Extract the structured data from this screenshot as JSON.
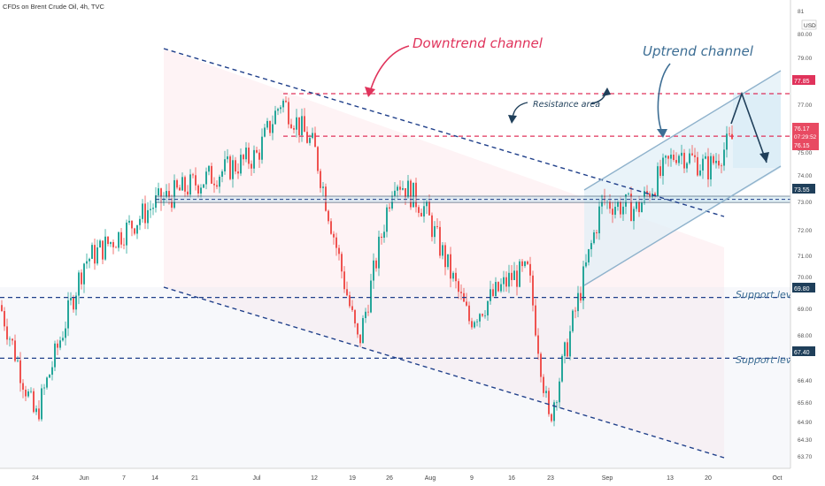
{
  "header": {
    "symbol_line": "CFDs on Brent Crude Oil, 4h, TVC"
  },
  "y_axis": {
    "currency": "USD",
    "ticks": [
      "81",
      "80.00",
      "79.00",
      "77.85",
      "77.00",
      "76.17",
      "75.00",
      "74.00",
      "73.55",
      "73.00",
      "72.00",
      "71.00",
      "70.00",
      "69.80",
      "69.00",
      "68.00",
      "67.40",
      "66.40",
      "65.60",
      "64.90",
      "64.30",
      "63.70"
    ],
    "price_labels": [
      {
        "value": "77.85",
        "type": "resistance"
      },
      {
        "value": "76.17",
        "type": "last"
      },
      {
        "value": "07:29:52",
        "type": "countdown"
      },
      {
        "value": "76.15",
        "type": "last2"
      },
      {
        "value": "73.55",
        "type": "level"
      },
      {
        "value": "69.80",
        "type": "support"
      },
      {
        "value": "67.40",
        "type": "support"
      }
    ]
  },
  "x_axis": {
    "ticks": [
      "24",
      "Jun",
      "7",
      "14",
      "21",
      "Jul",
      "12",
      "19",
      "26",
      "Aug",
      "9",
      "16",
      "23",
      "Sep",
      "13",
      "20",
      "Oct"
    ]
  },
  "annotations": {
    "downtrend": "Downtrend channel",
    "uptrend": "Uptrend channel",
    "resistance": "Resistance area",
    "support1": "Support level",
    "support2": "Support level"
  },
  "colors": {
    "up": "#26a69a",
    "down": "#ef5350",
    "resistance": "#e0335b",
    "support": "#1f3f8a",
    "channel": "#8fb2cc",
    "label_red": "#e0335b",
    "label_blue": "#3d6e94"
  },
  "chart_data": {
    "type": "line",
    "title": "CFDs on Brent Crude Oil, 4h, TVC",
    "xlabel": "",
    "ylabel": "USD",
    "ylim": [
      63.4,
      81.2
    ],
    "x": [
      "May 18",
      "May 24",
      "Jun 1",
      "Jun 7",
      "Jun 14",
      "Jun 21",
      "Jul 1",
      "Jul 6",
      "Jul 12",
      "Jul 19",
      "Jul 26",
      "Aug 2",
      "Aug 9",
      "Aug 16",
      "Aug 20",
      "Aug 23",
      "Sep 1",
      "Sep 7",
      "Sep 13",
      "Sep 20",
      "Sep 24"
    ],
    "series": [
      {
        "values": [
          69.5,
          65.0,
          71.2,
          72.4,
          73.5,
          74.3,
          75.4,
          77.6,
          75.7,
          67.9,
          74.6,
          73.3,
          68.9,
          70.6,
          70.8,
          64.9,
          73.6,
          73.3,
          75.6,
          74.9,
          76.17
        ]
      }
    ],
    "levels": {
      "resistance": [
        77.85,
        76.17
      ],
      "zone": [
        73.55,
        73.8
      ],
      "support": [
        69.8,
        67.4
      ]
    }
  }
}
